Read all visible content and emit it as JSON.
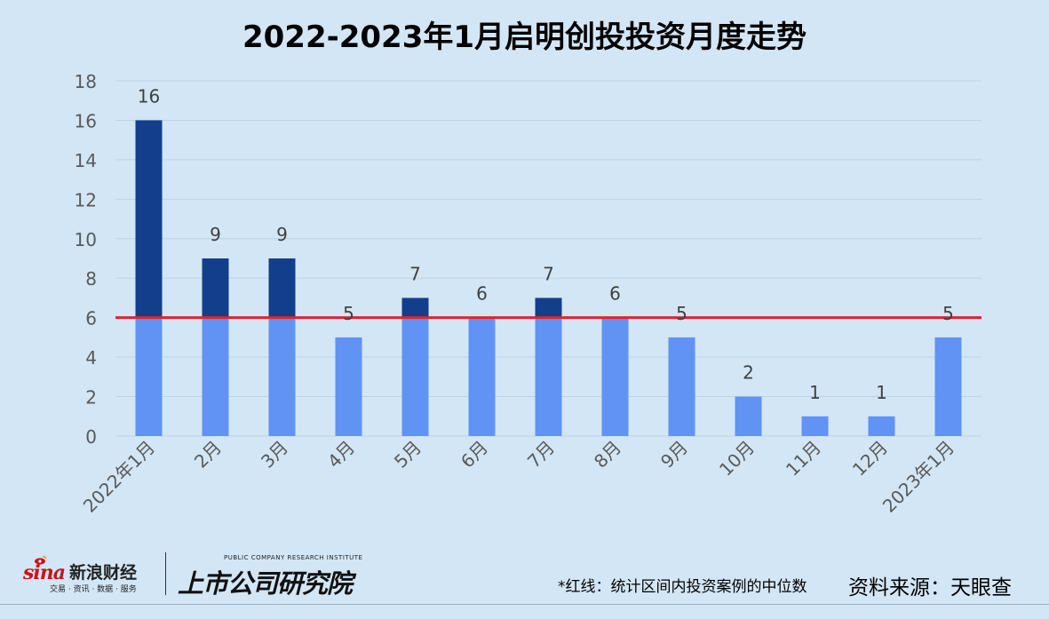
{
  "chart_data": {
    "type": "bar",
    "title": "2022-2023年1月启明创投投资月度走势",
    "categories": [
      "2022年1月",
      "2月",
      "3月",
      "4月",
      "5月",
      "6月",
      "7月",
      "8月",
      "9月",
      "10月",
      "11月",
      "12月",
      "2023年1月"
    ],
    "values": [
      16,
      9,
      9,
      5,
      7,
      6,
      7,
      6,
      5,
      2,
      1,
      1,
      5
    ],
    "data_labels": [
      "16",
      "9",
      "9",
      "5",
      "7",
      "6",
      "7",
      "6",
      "5",
      "2",
      "1",
      "1",
      "5"
    ],
    "reference_line": {
      "value": 6,
      "color": "#e8202a"
    },
    "ylim": [
      0,
      18
    ],
    "yticks": [
      "0",
      "2",
      "4",
      "6",
      "8",
      "10",
      "12",
      "14",
      "16",
      "18"
    ],
    "grid": true,
    "colors": {
      "below": "#6193f5",
      "above": "#133e8c",
      "background": "#d3e6f5",
      "grid": "#bfd2e2"
    }
  },
  "footer": {
    "note": "*红线：统计区间内投资案例的中位数",
    "source": "资料来源：天眼查"
  },
  "logos": {
    "sina_mark": "sina",
    "sina_name": "新浪财经",
    "sina_sub": "交易 · 资讯 · 数据 · 服务",
    "pcri_en": "PUBLIC COMPANY RESEARCH INSTITUTE",
    "pcri_cn": "上市公司研究院"
  }
}
